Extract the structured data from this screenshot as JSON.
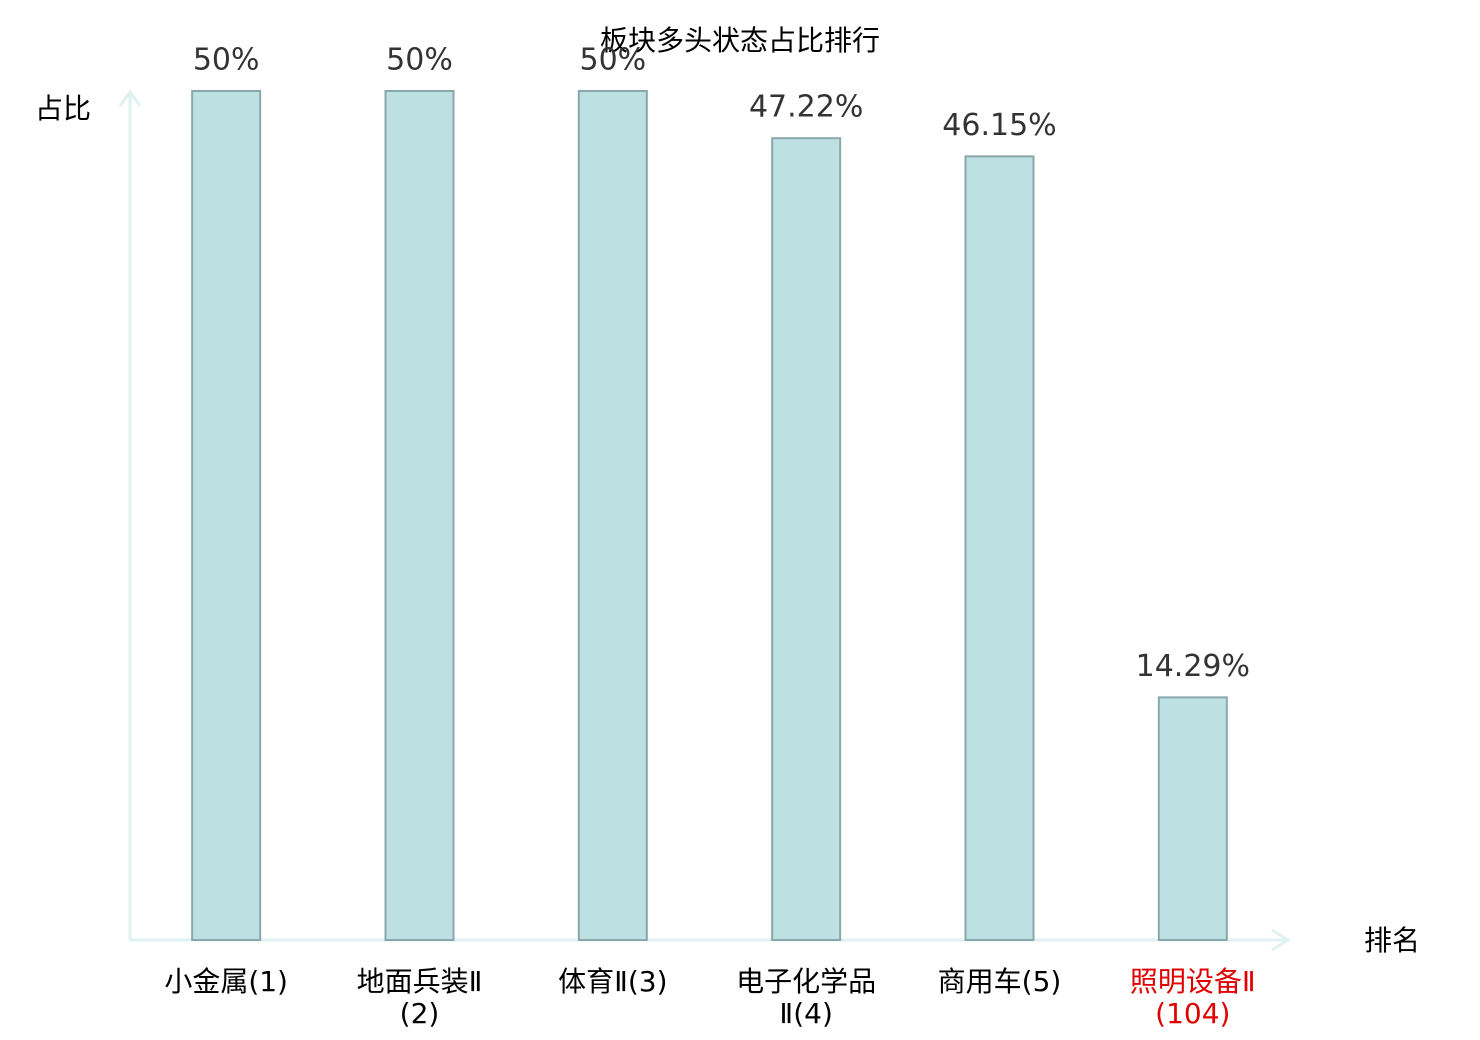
{
  "chart_data": {
    "type": "bar",
    "title": "板块多头状态占比排行",
    "y_label": "占比",
    "x_label": "排名",
    "categories": [
      "小金属(1)",
      "地面兵装Ⅱ(2)",
      "体育Ⅱ(3)",
      "电子化学品Ⅱ(4)",
      "商用车(5)",
      "照明设备Ⅱ(104)"
    ],
    "category_colors": [
      "#000000",
      "#000000",
      "#000000",
      "#000000",
      "#000000",
      "#e00000"
    ],
    "values": [
      50,
      50,
      50,
      47.22,
      46.15,
      14.29
    ],
    "value_labels": [
      "50%",
      "50%",
      "50%",
      "47.22%",
      "46.15%",
      "14.29%"
    ],
    "color": "#bde0e3",
    "edge_color": "#8aa8ab",
    "ylim": [
      0,
      50
    ]
  }
}
